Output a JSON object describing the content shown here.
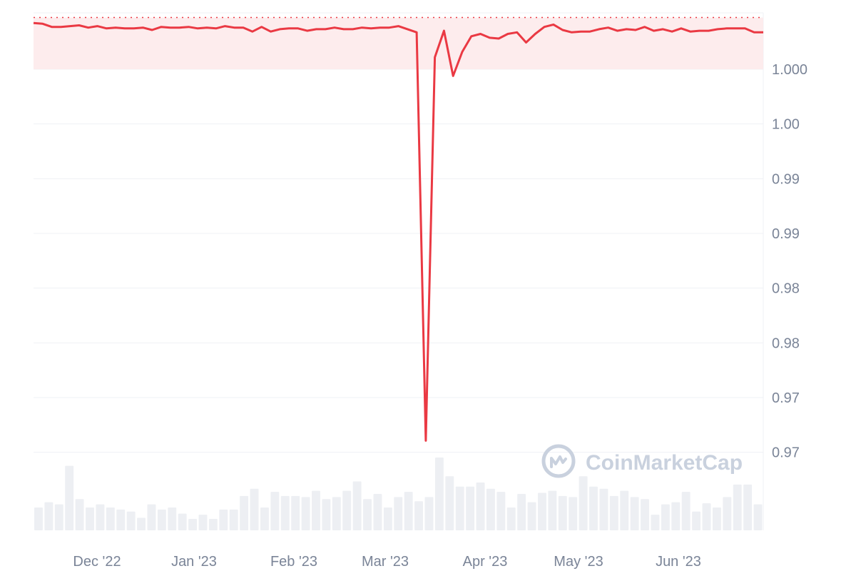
{
  "chart_data": {
    "type": "line",
    "title": "",
    "xlabel": "",
    "ylabel": "",
    "y_tick_labels": [
      "1.000",
      "1.00",
      "0.99",
      "0.99",
      "0.98",
      "0.98",
      "0.97",
      "0.97"
    ],
    "x_tick_labels": [
      "Dec '22",
      "Jan '23",
      "Feb '23",
      "Mar '23",
      "Apr '23",
      "May '23",
      "Jun '23"
    ],
    "ylim": [
      0.968,
      1.0012
    ],
    "reference_line_value": 1.0009,
    "grid": true,
    "series": [
      {
        "type": "line",
        "color": "#ea3943",
        "values": [
          1.00055,
          1.0005,
          1.0003,
          1.0003,
          1.00035,
          1.0004,
          1.00025,
          1.00035,
          1.0002,
          1.00025,
          1.0002,
          1.0002,
          1.00025,
          1.0001,
          1.0003,
          1.00025,
          1.00025,
          1.0003,
          1.0002,
          1.00025,
          1.0002,
          1.00035,
          1.00025,
          1.00025,
          1.0,
          1.0003,
          1.0,
          1.00015,
          1.0002,
          1.0002,
          1.00005,
          1.00015,
          1.00015,
          1.00025,
          1.00015,
          1.00015,
          1.00025,
          1.0002,
          1.00025,
          1.00025,
          1.00035,
          1.00015,
          0.99995,
          0.97375,
          0.99835,
          1.00005,
          0.99715,
          0.9987,
          0.9997,
          0.99985,
          0.9996,
          0.99955,
          0.99985,
          0.99995,
          0.9993,
          0.99985,
          1.0003,
          1.00045,
          1.0001,
          0.99995,
          1.0,
          1.0,
          1.00015,
          1.00025,
          1.00005,
          1.00015,
          1.0001,
          1.0003,
          1.00005,
          1.00015,
          1.0,
          1.0002,
          1.0,
          1.00005,
          1.00005,
          1.00015,
          1.0002,
          1.0002,
          1.0002,
          0.99995,
          0.99995
        ]
      },
      {
        "type": "volume_bars",
        "color": "#edeff3",
        "values": [
          22,
          27,
          25,
          62,
          30,
          22,
          25,
          22,
          20,
          18,
          12,
          25,
          20,
          22,
          16,
          11,
          15,
          11,
          20,
          20,
          33,
          40,
          22,
          37,
          33,
          33,
          32,
          38,
          30,
          32,
          38,
          47,
          30,
          35,
          22,
          32,
          37,
          28,
          32,
          70,
          52,
          42,
          42,
          46,
          40,
          37,
          22,
          35,
          27,
          36,
          38,
          33,
          32,
          52,
          42,
          40,
          33,
          38,
          32,
          30,
          15,
          25,
          27,
          37,
          18,
          26,
          22,
          32,
          44,
          44,
          25
        ]
      }
    ]
  },
  "watermark": {
    "text": "CoinMarketCap",
    "icon": "coinmarketcap-logo-icon"
  },
  "colors": {
    "line": "#ea3943",
    "reference_line": "#ea3943",
    "band_fill": "#fdeced",
    "grid": "#eff1f5",
    "volume": "#edeff3",
    "axis_text": "#7a8497"
  }
}
